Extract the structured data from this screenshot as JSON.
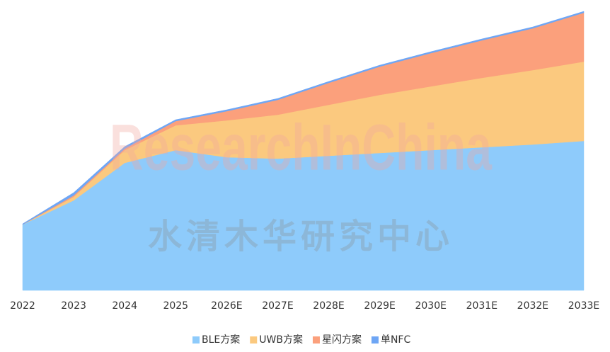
{
  "chart_data": {
    "type": "stacked_area",
    "categories": [
      "2022",
      "2023",
      "2024",
      "2025",
      "2026E",
      "2027E",
      "2028E",
      "2029E",
      "2030E",
      "2031E",
      "2032E",
      "2033E"
    ],
    "series": [
      {
        "name": "BLE方案",
        "color": "#8ecbfb",
        "values": [
          93,
          127,
          180,
          198,
          188,
          186,
          190,
          194,
          198,
          202,
          206,
          211
        ]
      },
      {
        "name": "UWB方案",
        "color": "#fbc97f",
        "values": [
          0,
          5,
          18,
          35,
          52,
          62,
          72,
          82,
          90,
          98,
          105,
          112
        ]
      },
      {
        "name": "星闪方案",
        "color": "#fba07c",
        "values": [
          0,
          2,
          2,
          6,
          13,
          21,
          31,
          40,
          47,
          53,
          59,
          69
        ]
      },
      {
        "name": "单NFC",
        "color": "#6ea6f5",
        "values": [
          1,
          4,
          3,
          2,
          2,
          2,
          2,
          2,
          2,
          2,
          2,
          2
        ]
      }
    ],
    "ylim": [
      0,
      395
    ],
    "legend": "bottom",
    "watermark": {
      "title": "ResearchInChina",
      "subtitle": "水清木华研究中心"
    }
  }
}
